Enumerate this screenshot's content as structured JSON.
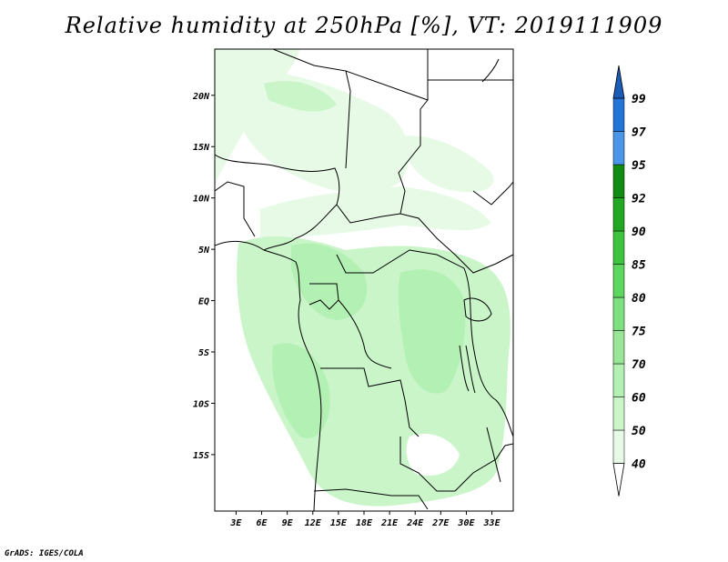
{
  "title": "Relative humidity at 250hPa [%], VT: 2019111909",
  "credit": "GrADS: IGES/COLA",
  "map": {
    "projection": "lat-lon",
    "lon_range": [
      0.5,
      35.5
    ],
    "lat_range": [
      -20.5,
      24.5
    ],
    "lat_ticks": [
      {
        "value": 20,
        "label": "20N"
      },
      {
        "value": 15,
        "label": "15N"
      },
      {
        "value": 10,
        "label": "10N"
      },
      {
        "value": 5,
        "label": "5N"
      },
      {
        "value": 0,
        "label": "EQ"
      },
      {
        "value": -5,
        "label": "5S"
      },
      {
        "value": -10,
        "label": "10S"
      },
      {
        "value": -15,
        "label": "15S"
      }
    ],
    "lon_ticks": [
      {
        "value": 3,
        "label": "3E"
      },
      {
        "value": 6,
        "label": "6E"
      },
      {
        "value": 9,
        "label": "9E"
      },
      {
        "value": 12,
        "label": "12E"
      },
      {
        "value": 15,
        "label": "15E"
      },
      {
        "value": 18,
        "label": "18E"
      },
      {
        "value": 21,
        "label": "21E"
      },
      {
        "value": 24,
        "label": "24E"
      },
      {
        "value": 27,
        "label": "27E"
      },
      {
        "value": 30,
        "label": "30E"
      },
      {
        "value": 33,
        "label": "33E"
      }
    ]
  },
  "colorbar": {
    "levels": [
      "40",
      "50",
      "60",
      "70",
      "75",
      "80",
      "85",
      "90",
      "92",
      "95",
      "97",
      "99"
    ],
    "colors": [
      "#ffffff",
      "#e6fae6",
      "#c9f5c9",
      "#b3f0b3",
      "#99e699",
      "#7ee07e",
      "#5cd65c",
      "#3ec43e",
      "#22a822",
      "#128c12",
      "#4a96e8",
      "#2474d8",
      "#1a5cb8"
    ]
  }
}
